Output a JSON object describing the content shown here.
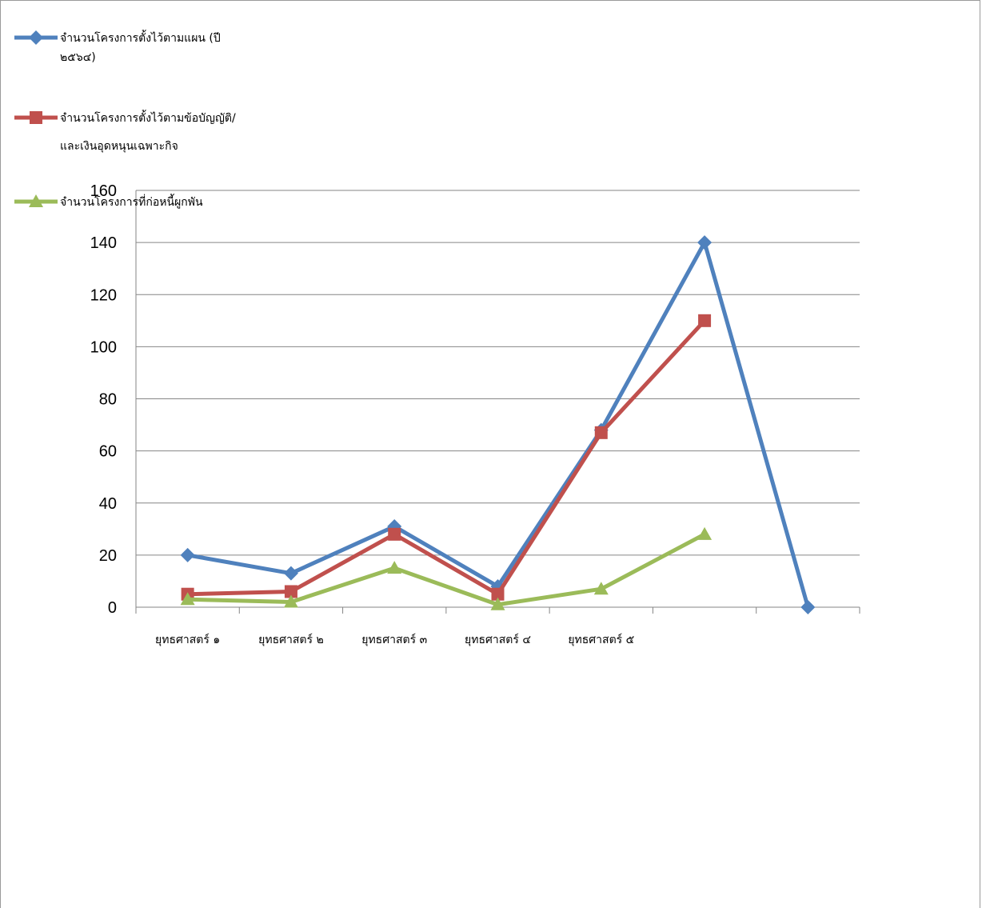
{
  "chart_data": {
    "type": "line",
    "categories": [
      "ยุทธศาสตร์ ๑",
      "ยุทธศาสตร์ ๒",
      "ยุทธศาสตร์ ๓",
      "ยุทธศาสตร์ ๔",
      "ยุทธศาสตร์ ๕",
      "",
      ""
    ],
    "ylim": [
      0,
      160
    ],
    "yticks": [
      0,
      20,
      40,
      60,
      80,
      100,
      120,
      140,
      160
    ],
    "grid": true,
    "legend_position": "top-left",
    "series": [
      {
        "name_lines": [
          "จำนวนโครงการตั้งไว้ตามแผน (ปี",
          "๒๕๖๔)"
        ],
        "color": "#4f81bd",
        "marker": "diamond",
        "values": [
          20,
          13,
          31,
          8,
          68,
          140,
          0
        ]
      },
      {
        "name_lines": [
          "จำนวนโครงการตั้งไว้ตามข้อบัญญัติ/",
          "และเงินอุดหนุนเฉพาะกิจ"
        ],
        "color": "#c0504d",
        "marker": "square",
        "values": [
          5,
          6,
          28,
          5,
          67,
          110,
          null
        ]
      },
      {
        "name_lines": [
          "จำนวนโครงการที่ก่อหนี้ผูกพัน"
        ],
        "color": "#9bbb59",
        "marker": "triangle",
        "values": [
          3,
          2,
          15,
          1,
          7,
          28,
          null
        ]
      }
    ]
  }
}
